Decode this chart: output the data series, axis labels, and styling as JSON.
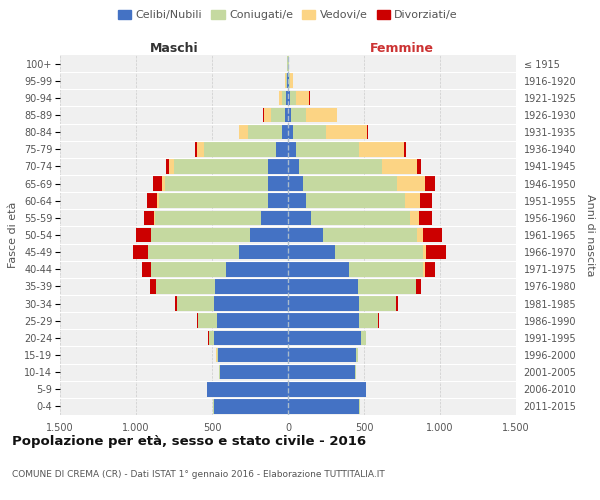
{
  "age_groups": [
    "0-4",
    "5-9",
    "10-14",
    "15-19",
    "20-24",
    "25-29",
    "30-34",
    "35-39",
    "40-44",
    "45-49",
    "50-54",
    "55-59",
    "60-64",
    "65-69",
    "70-74",
    "75-79",
    "80-84",
    "85-89",
    "90-94",
    "95-99",
    "100+"
  ],
  "birth_years": [
    "2011-2015",
    "2006-2010",
    "2001-2005",
    "1996-2000",
    "1991-1995",
    "1986-1990",
    "1981-1985",
    "1976-1980",
    "1971-1975",
    "1966-1970",
    "1961-1965",
    "1956-1960",
    "1951-1955",
    "1946-1950",
    "1941-1945",
    "1936-1940",
    "1931-1935",
    "1926-1930",
    "1921-1925",
    "1916-1920",
    "≤ 1915"
  ],
  "male": {
    "celibi": [
      490,
      530,
      450,
      460,
      490,
      470,
      490,
      480,
      410,
      320,
      250,
      175,
      130,
      130,
      130,
      80,
      40,
      20,
      10,
      5,
      2
    ],
    "coniugati": [
      2,
      2,
      5,
      10,
      30,
      120,
      240,
      390,
      490,
      600,
      650,
      700,
      720,
      680,
      620,
      470,
      220,
      90,
      30,
      8,
      2
    ],
    "vedovi": [
      1,
      1,
      1,
      1,
      1,
      1,
      1,
      1,
      2,
      2,
      3,
      5,
      10,
      20,
      35,
      50,
      60,
      50,
      20,
      5,
      1
    ],
    "divorziati": [
      1,
      1,
      1,
      2,
      3,
      5,
      10,
      40,
      60,
      100,
      100,
      70,
      70,
      60,
      20,
      10,
      5,
      3,
      2,
      1,
      0
    ]
  },
  "female": {
    "nubili": [
      470,
      510,
      440,
      450,
      480,
      470,
      470,
      460,
      400,
      310,
      230,
      150,
      120,
      100,
      70,
      50,
      30,
      20,
      10,
      5,
      2
    ],
    "coniugate": [
      2,
      2,
      5,
      10,
      30,
      120,
      240,
      380,
      490,
      580,
      620,
      650,
      650,
      620,
      550,
      420,
      220,
      100,
      40,
      10,
      2
    ],
    "vedove": [
      1,
      1,
      1,
      1,
      1,
      2,
      3,
      5,
      10,
      20,
      40,
      60,
      100,
      180,
      230,
      290,
      270,
      200,
      90,
      20,
      2
    ],
    "divorziate": [
      1,
      1,
      1,
      2,
      3,
      5,
      10,
      30,
      70,
      130,
      120,
      90,
      80,
      70,
      25,
      15,
      8,
      5,
      3,
      1,
      0
    ]
  },
  "colors": {
    "celibi_nubili": "#4472c4",
    "coniugati": "#c5d9a0",
    "vedovi": "#fcd484",
    "divorziati": "#cc0000"
  },
  "xlim": 1500,
  "title": "Popolazione per età, sesso e stato civile - 2016",
  "subtitle": "COMUNE DI CREMA (CR) - Dati ISTAT 1° gennaio 2016 - Elaborazione TUTTITALIA.IT",
  "ylabel_left": "Fasce di età",
  "ylabel_right": "Anni di nascita",
  "xlabel_left": "Maschi",
  "xlabel_right": "Femmine",
  "background_color": "#ffffff",
  "plot_bg_color": "#f0f0f0",
  "grid_color": "#cccccc"
}
